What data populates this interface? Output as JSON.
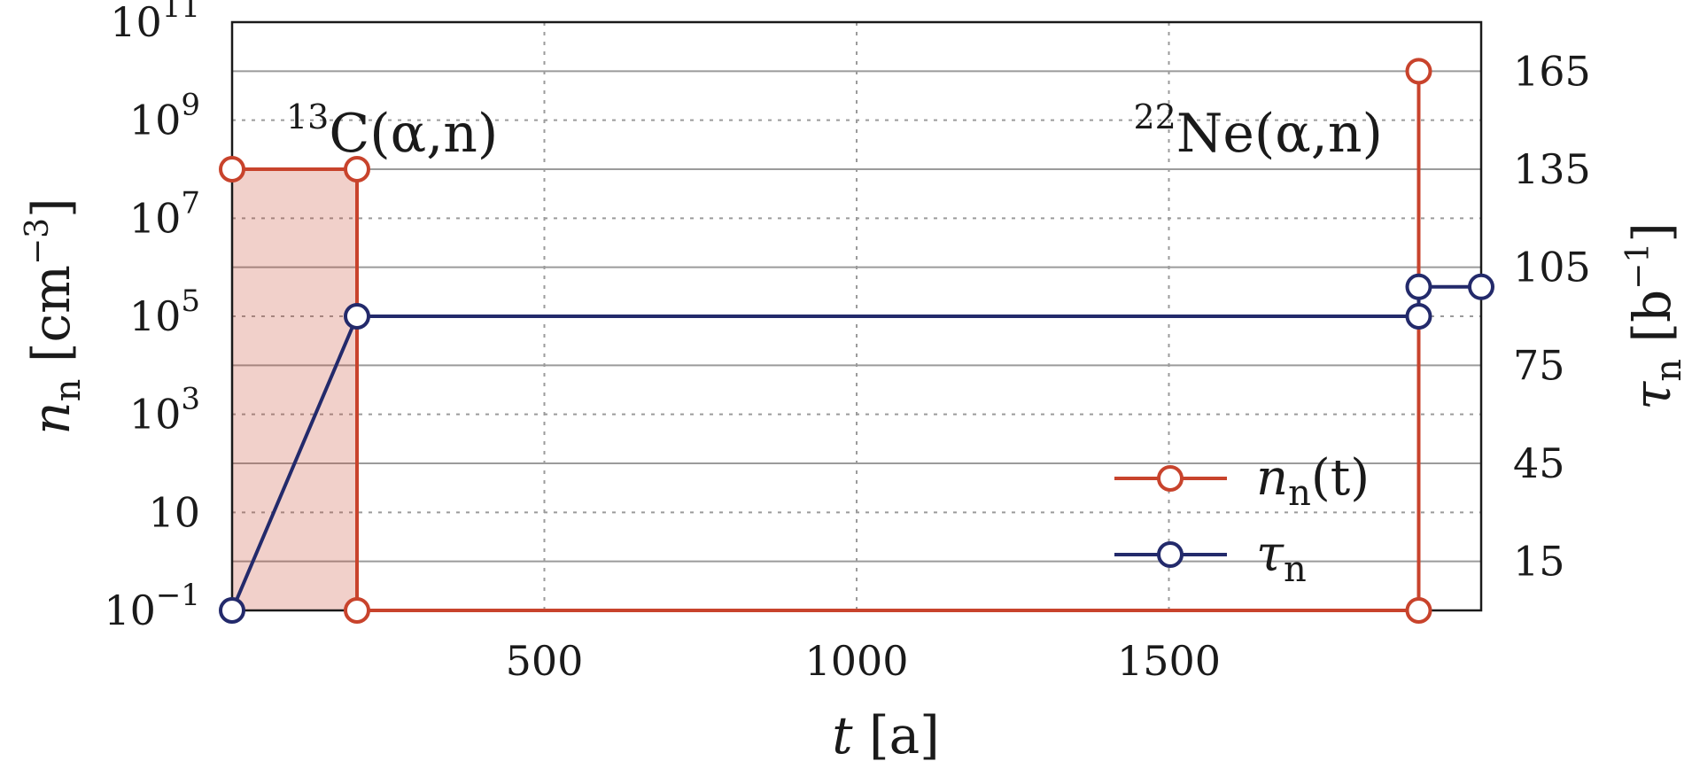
{
  "chart_data": {
    "type": "line",
    "xlabel": {
      "var": "t",
      "unit": "[a]"
    },
    "ylabel_left": {
      "var": "n",
      "sub": "n",
      "unit_open": "[cm",
      "unit_sup": "−3",
      "unit_close": "]"
    },
    "ylabel_right": {
      "var": "τ",
      "sub": "n",
      "unit_open": "[b",
      "unit_sup": "−1",
      "unit_close": "]"
    },
    "xlim": [
      0,
      2000
    ],
    "ylim_left_log10": [
      -1,
      11
    ],
    "ylim_right": [
      0,
      180
    ],
    "left_scale": "log",
    "grid": true,
    "x_ticks": [
      {
        "value": 500,
        "label": "500"
      },
      {
        "value": 1000,
        "label": "1000"
      },
      {
        "value": 1500,
        "label": "1500"
      }
    ],
    "y_left_ticks": [
      {
        "exp": 11,
        "base": "10",
        "sup": "11"
      },
      {
        "exp": 9,
        "base": "10",
        "sup": "9"
      },
      {
        "exp": 7,
        "base": "10",
        "sup": "7"
      },
      {
        "exp": 5,
        "base": "10",
        "sup": "5"
      },
      {
        "exp": 3,
        "base": "10",
        "sup": "3"
      },
      {
        "exp": 1,
        "base": "10",
        "sup": ""
      },
      {
        "exp": -1,
        "base": "10",
        "sup": "−1"
      }
    ],
    "y_right_ticks": [
      {
        "value": 165,
        "label": "165"
      },
      {
        "value": 135,
        "label": "135"
      },
      {
        "value": 105,
        "label": "105"
      },
      {
        "value": 75,
        "label": "75"
      },
      {
        "value": 45,
        "label": "45"
      },
      {
        "value": 15,
        "label": "15"
      }
    ],
    "series": [
      {
        "key": "nn",
        "color": "#c8432c",
        "axis": "left",
        "legend": {
          "var": "n",
          "sub": "n",
          "arg": "(t)"
        },
        "points": [
          {
            "x": 0,
            "log10y": 8
          },
          {
            "x": 200,
            "log10y": 8
          },
          {
            "x": 200,
            "log10y": -1
          },
          {
            "x": 1900,
            "log10y": -1
          },
          {
            "x": 1900,
            "log10y": 10
          }
        ]
      },
      {
        "key": "tau",
        "color": "#232a6b",
        "axis": "right",
        "legend": {
          "var": "τ",
          "sub": "n",
          "arg": ""
        },
        "points": [
          {
            "x": 0,
            "y": 0
          },
          {
            "x": 200,
            "y": 90
          },
          {
            "x": 1900,
            "y": 90
          },
          {
            "x": 1900,
            "y": 99
          },
          {
            "x": 2000,
            "y": 99
          }
        ]
      }
    ],
    "shaded_region": {
      "x0": 0,
      "x1": 200,
      "log10y0": -1,
      "log10y1": 8,
      "color": "#c8432c"
    },
    "annotations": [
      {
        "key": "c13",
        "mass": "13",
        "label": "C(α,n)",
        "x": 200,
        "log10y": 8
      },
      {
        "key": "ne22",
        "mass": "22",
        "label": "Ne(α,n)",
        "x": 1900,
        "log10y": 8
      }
    ],
    "legend_position": "lower-right"
  }
}
